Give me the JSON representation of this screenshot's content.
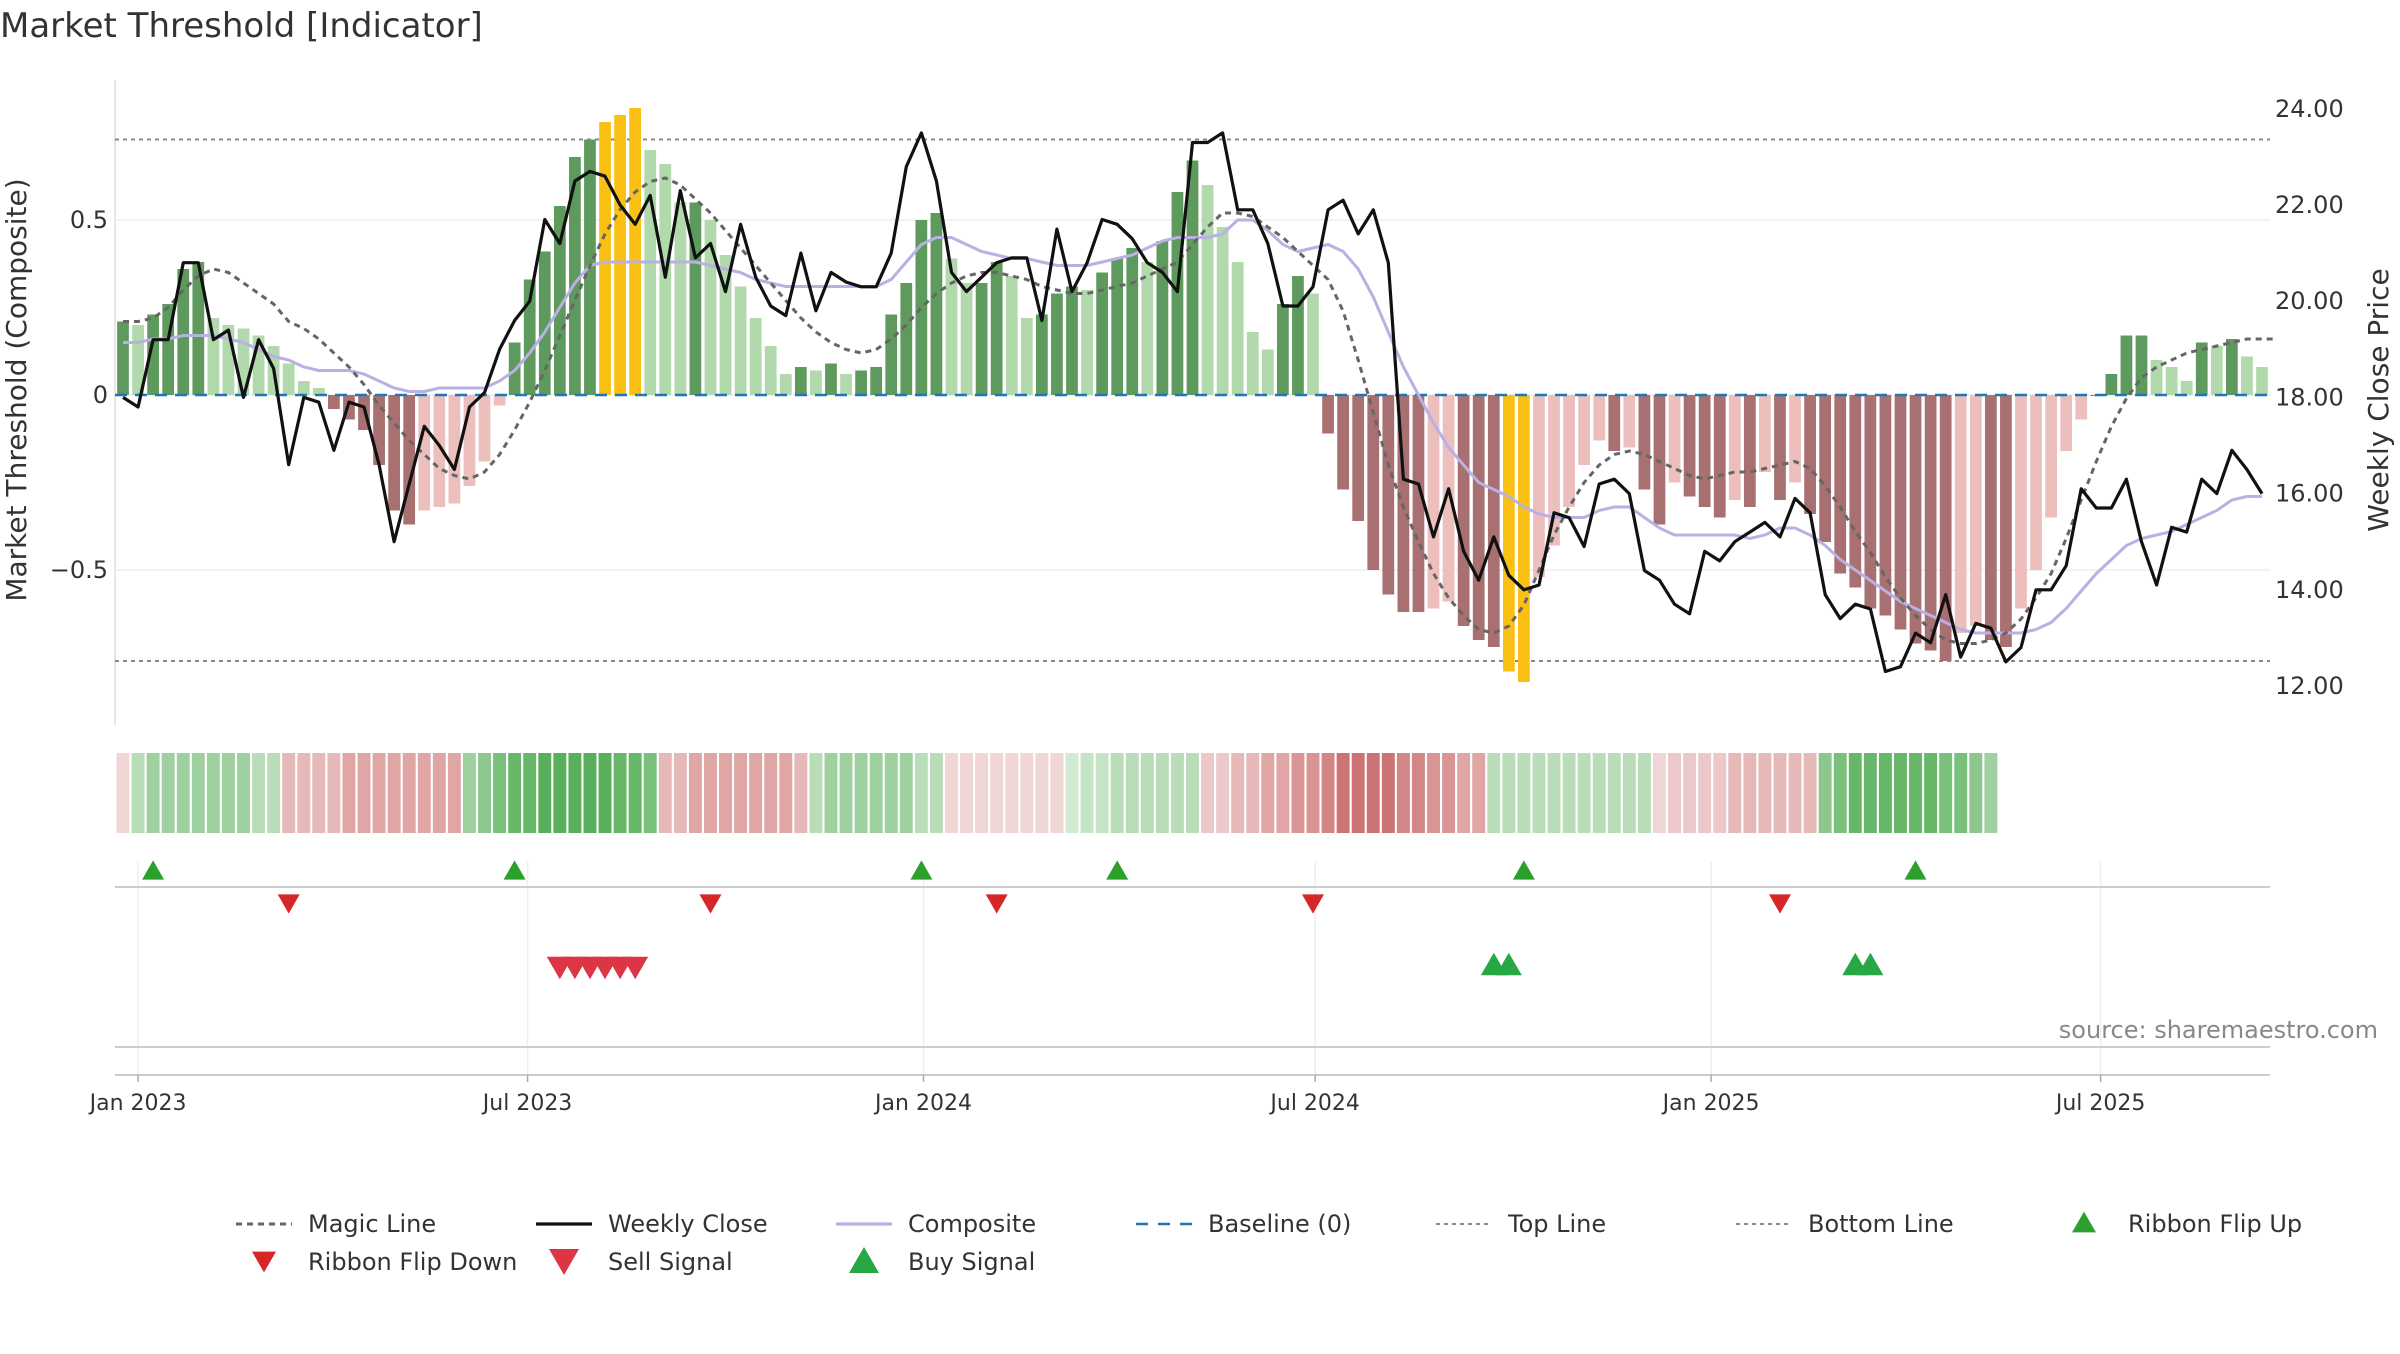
{
  "chart_data": {
    "type": "bar",
    "title": "Market Threshold [Indicator]",
    "ylabel": "Market Threshold (Composite)",
    "y2label": "Weekly Close Price",
    "ylim": [
      -0.9,
      0.9
    ],
    "y2lim": [
      11.5,
      24.6
    ],
    "yticks": [
      {
        "v": 0.5,
        "label": "0.5"
      },
      {
        "v": 0,
        "label": "0"
      },
      {
        "v": -0.5,
        "label": "−0.5"
      }
    ],
    "y2ticks": [
      "12.00",
      "14.00",
      "16.00",
      "18.00",
      "20.00",
      "22.00",
      "24.00"
    ],
    "x_start": "2022-12-25",
    "x_step_days": 7,
    "x_ticks": [
      {
        "date": "2023-01-01",
        "label": "Jan 2023"
      },
      {
        "date": "2023-07-01",
        "label": "Jul 2023"
      },
      {
        "date": "2024-01-01",
        "label": "Jan 2024"
      },
      {
        "date": "2024-07-01",
        "label": "Jul 2024"
      },
      {
        "date": "2025-01-01",
        "label": "Jan 2025"
      },
      {
        "date": "2025-07-01",
        "label": "Jul 2025"
      }
    ],
    "top_line": 0.73,
    "bottom_line": -0.76,
    "composite": [
      0.21,
      0.2,
      0.23,
      0.26,
      0.36,
      0.38,
      0.22,
      0.2,
      0.19,
      0.17,
      0.14,
      0.09,
      0.04,
      0.02,
      -0.04,
      -0.07,
      -0.1,
      -0.2,
      -0.33,
      -0.37,
      -0.33,
      -0.32,
      -0.31,
      -0.26,
      -0.19,
      -0.03,
      0.15,
      0.33,
      0.41,
      0.54,
      0.68,
      0.73,
      0.78,
      0.8,
      0.82,
      0.7,
      0.66,
      0.55,
      0.55,
      0.5,
      0.4,
      0.31,
      0.22,
      0.14,
      0.06,
      0.08,
      0.07,
      0.09,
      0.06,
      0.07,
      0.08,
      0.23,
      0.32,
      0.5,
      0.52,
      0.39,
      0.32,
      0.32,
      0.38,
      0.34,
      0.22,
      0.23,
      0.29,
      0.31,
      0.3,
      0.35,
      0.39,
      0.42,
      0.38,
      0.44,
      0.58,
      0.67,
      0.6,
      0.48,
      0.38,
      0.18,
      0.13,
      0.26,
      0.34,
      0.29,
      -0.11,
      -0.27,
      -0.36,
      -0.5,
      -0.57,
      -0.62,
      -0.62,
      -0.61,
      -0.59,
      -0.66,
      -0.7,
      -0.72,
      -0.79,
      -0.82,
      -0.52,
      -0.43,
      -0.32,
      -0.2,
      -0.13,
      -0.16,
      -0.15,
      -0.27,
      -0.37,
      -0.25,
      -0.29,
      -0.32,
      -0.35,
      -0.3,
      -0.32,
      -0.22,
      -0.3,
      -0.25,
      -0.34,
      -0.42,
      -0.51,
      -0.55,
      -0.61,
      -0.63,
      -0.67,
      -0.71,
      -0.73,
      -0.76,
      -0.68,
      -0.66,
      -0.7,
      -0.72,
      -0.61,
      -0.5,
      -0.35,
      -0.16,
      -0.07,
      0.0,
      0.06,
      0.17,
      0.17,
      0.1,
      0.08,
      0.04,
      0.15,
      0.14,
      0.16,
      0.11,
      0.08
    ],
    "weekly_close": [
      18.0,
      17.8,
      19.2,
      19.2,
      20.8,
      20.8,
      19.2,
      19.4,
      18.0,
      19.2,
      18.6,
      16.6,
      18.0,
      17.9,
      16.9,
      17.9,
      17.8,
      16.6,
      15.0,
      16.2,
      17.4,
      17.0,
      16.5,
      17.8,
      18.1,
      19.0,
      19.6,
      20.0,
      21.7,
      21.2,
      22.5,
      22.7,
      22.6,
      22.0,
      21.6,
      22.2,
      20.5,
      22.3,
      20.9,
      21.2,
      20.2,
      21.6,
      20.5,
      19.9,
      19.7,
      21.0,
      19.8,
      20.6,
      20.4,
      20.3,
      20.3,
      21.0,
      22.8,
      23.5,
      22.5,
      20.6,
      20.2,
      20.5,
      20.8,
      20.9,
      20.9,
      19.6,
      21.5,
      20.2,
      20.8,
      21.7,
      21.6,
      21.3,
      20.8,
      20.6,
      20.2,
      23.3,
      23.3,
      23.5,
      21.9,
      21.9,
      21.2,
      19.9,
      19.9,
      20.3,
      21.9,
      22.1,
      21.4,
      21.9,
      20.8,
      16.3,
      16.2,
      15.1,
      16.1,
      14.8,
      14.2,
      15.1,
      14.3,
      14.0,
      14.1,
      15.6,
      15.5,
      14.9,
      16.2,
      16.3,
      16.0,
      14.4,
      14.2,
      13.7,
      13.5,
      14.8,
      14.6,
      15.0,
      15.2,
      15.4,
      15.1,
      15.9,
      15.6,
      13.9,
      13.4,
      13.7,
      13.6,
      12.3,
      12.4,
      13.1,
      12.9,
      13.9,
      12.6,
      13.3,
      13.2,
      12.5,
      12.8,
      14.0,
      14.0,
      14.5,
      16.1,
      15.7,
      15.7,
      16.3,
      15.0,
      14.1,
      15.3,
      15.2,
      16.3,
      16.0,
      16.9,
      16.5,
      16.0
    ],
    "magic_line": [
      0.21,
      0.21,
      0.22,
      0.25,
      0.3,
      0.34,
      0.36,
      0.35,
      0.32,
      0.29,
      0.26,
      0.21,
      0.19,
      0.16,
      0.12,
      0.08,
      0.03,
      -0.03,
      -0.08,
      -0.13,
      -0.17,
      -0.21,
      -0.23,
      -0.24,
      -0.22,
      -0.17,
      -0.1,
      -0.02,
      0.07,
      0.17,
      0.27,
      0.37,
      0.46,
      0.53,
      0.58,
      0.61,
      0.62,
      0.6,
      0.56,
      0.52,
      0.47,
      0.42,
      0.37,
      0.32,
      0.27,
      0.22,
      0.18,
      0.15,
      0.13,
      0.12,
      0.13,
      0.16,
      0.2,
      0.25,
      0.29,
      0.32,
      0.34,
      0.35,
      0.35,
      0.34,
      0.33,
      0.31,
      0.3,
      0.29,
      0.29,
      0.3,
      0.31,
      0.32,
      0.34,
      0.36,
      0.38,
      0.43,
      0.48,
      0.52,
      0.52,
      0.51,
      0.48,
      0.45,
      0.41,
      0.37,
      0.33,
      0.24,
      0.1,
      -0.05,
      -0.2,
      -0.32,
      -0.42,
      -0.51,
      -0.58,
      -0.63,
      -0.67,
      -0.68,
      -0.66,
      -0.6,
      -0.5,
      -0.4,
      -0.32,
      -0.25,
      -0.2,
      -0.17,
      -0.16,
      -0.17,
      -0.19,
      -0.21,
      -0.23,
      -0.24,
      -0.23,
      -0.22,
      -0.22,
      -0.21,
      -0.2,
      -0.19,
      -0.21,
      -0.26,
      -0.32,
      -0.39,
      -0.45,
      -0.52,
      -0.58,
      -0.63,
      -0.67,
      -0.7,
      -0.71,
      -0.71,
      -0.7,
      -0.68,
      -0.64,
      -0.58,
      -0.51,
      -0.41,
      -0.3,
      -0.19,
      -0.09,
      -0.01,
      0.05,
      0.08,
      0.1,
      0.12,
      0.13,
      0.14,
      0.15,
      0.16,
      0.16,
      0.16
    ],
    "composite_line": [
      0.15,
      0.15,
      0.16,
      0.16,
      0.17,
      0.17,
      0.17,
      0.16,
      0.15,
      0.13,
      0.11,
      0.1,
      0.08,
      0.07,
      0.07,
      0.07,
      0.06,
      0.04,
      0.02,
      0.01,
      0.01,
      0.02,
      0.02,
      0.02,
      0.02,
      0.04,
      0.07,
      0.12,
      0.18,
      0.25,
      0.32,
      0.37,
      0.38,
      0.38,
      0.38,
      0.38,
      0.38,
      0.38,
      0.38,
      0.37,
      0.36,
      0.35,
      0.33,
      0.32,
      0.31,
      0.31,
      0.31,
      0.31,
      0.31,
      0.31,
      0.31,
      0.33,
      0.38,
      0.43,
      0.45,
      0.45,
      0.43,
      0.41,
      0.4,
      0.39,
      0.39,
      0.38,
      0.37,
      0.37,
      0.37,
      0.38,
      0.39,
      0.4,
      0.42,
      0.44,
      0.45,
      0.45,
      0.45,
      0.46,
      0.5,
      0.5,
      0.47,
      0.43,
      0.41,
      0.42,
      0.43,
      0.41,
      0.36,
      0.28,
      0.18,
      0.08,
      0.0,
      -0.08,
      -0.15,
      -0.2,
      -0.25,
      -0.27,
      -0.29,
      -0.32,
      -0.34,
      -0.35,
      -0.35,
      -0.35,
      -0.33,
      -0.32,
      -0.32,
      -0.35,
      -0.38,
      -0.4,
      -0.4,
      -0.4,
      -0.4,
      -0.4,
      -0.41,
      -0.4,
      -0.38,
      -0.38,
      -0.4,
      -0.43,
      -0.47,
      -0.5,
      -0.53,
      -0.56,
      -0.59,
      -0.61,
      -0.63,
      -0.65,
      -0.67,
      -0.68,
      -0.68,
      -0.68,
      -0.68,
      -0.67,
      -0.65,
      -0.61,
      -0.56,
      -0.51,
      -0.47,
      -0.43,
      -0.41,
      -0.4,
      -0.39,
      -0.37,
      -0.35,
      -0.33,
      -0.3,
      -0.29,
      -0.29
    ]
  },
  "ribbon": {
    "colors": [
      "#f1d6d6",
      "#b9ddb9",
      "#9fd1a0",
      "#9fd1a0",
      "#9fd1a0",
      "#9fd1a0",
      "#9fd1a0",
      "#9fd1a0",
      "#9fd1a0",
      "#b9ddb9",
      "#b9ddb9",
      "#e6b8b8",
      "#e6b8b8",
      "#e6b8b8",
      "#e6b8b8",
      "#e0a6a6",
      "#e0a6a6",
      "#e0a6a6",
      "#e0a6a6",
      "#e0a6a6",
      "#e0a6a6",
      "#e0a6a6",
      "#e0a6a6",
      "#9fd1a0",
      "#8cc88d",
      "#79c07a",
      "#66b768",
      "#66b768",
      "#5aaf5c",
      "#5aaf5c",
      "#5aaf5c",
      "#5aaf5c",
      "#5aaf5c",
      "#66b768",
      "#66b768",
      "#79c07a",
      "#e6b8b8",
      "#e6b8b8",
      "#e0a6a6",
      "#e0a6a6",
      "#e0a6a6",
      "#e0a6a6",
      "#e0a6a6",
      "#e0a6a6",
      "#e0a6a6",
      "#e6b8b8",
      "#b9ddb9",
      "#9fd1a0",
      "#9fd1a0",
      "#9fd1a0",
      "#9fd1a0",
      "#9fd1a0",
      "#9fd1a0",
      "#b9ddb9",
      "#b9ddb9",
      "#f1d6d6",
      "#f1d6d6",
      "#f1d6d6",
      "#f1d6d6",
      "#f1d6d6",
      "#f1d6d6",
      "#f1d6d6",
      "#f1d6d6",
      "#d2ead2",
      "#c5e3c5",
      "#c5e3c5",
      "#b9ddb9",
      "#b9ddb9",
      "#b9ddb9",
      "#b9ddb9",
      "#b9ddb9",
      "#b9ddb9",
      "#ecc8c8",
      "#ecc8c8",
      "#e6b8b8",
      "#e6b8b8",
      "#e0a6a6",
      "#e0a6a6",
      "#d99595",
      "#d99595",
      "#d38686",
      "#cc7373",
      "#cc7373",
      "#cc7373",
      "#cc7373",
      "#d38686",
      "#d38686",
      "#d99595",
      "#d99595",
      "#e0a6a6",
      "#e0a6a6",
      "#b9ddb9",
      "#b9ddb9",
      "#b9ddb9",
      "#b9ddb9",
      "#b9ddb9",
      "#b9ddb9",
      "#b9ddb9",
      "#b9ddb9",
      "#b9ddb9",
      "#b9ddb9",
      "#b9ddb9",
      "#f1d6d6",
      "#ecc8c8",
      "#ecc8c8",
      "#ecc8c8",
      "#ecc8c8",
      "#e6b8b8",
      "#e6b8b8",
      "#e6b8b8",
      "#e6b8b8",
      "#e6b8b8",
      "#e6b8b8",
      "#8cc88d",
      "#79c07a",
      "#66b768",
      "#66b768",
      "#66b768",
      "#66b768",
      "#66b768",
      "#66b768",
      "#79c07a",
      "#79c07a",
      "#8cc88d",
      "#9fd1a0"
    ]
  },
  "signals": {
    "flip_up_weeks": [
      2,
      26,
      53,
      66,
      93,
      119
    ],
    "flip_down_weeks": [
      11,
      39,
      58,
      79,
      110
    ],
    "sell_weeks": [
      29,
      30,
      31,
      32,
      33,
      34
    ],
    "buy_weeks": [
      91,
      92,
      115,
      116
    ]
  },
  "source": "source: sharemaestro.com",
  "legend": [
    {
      "label": "Magic Line",
      "kind": "dotted",
      "color": "#666666"
    },
    {
      "label": "Weekly Close",
      "kind": "solid",
      "color": "#111111"
    },
    {
      "label": "Composite",
      "kind": "solid",
      "color": "#b9b0e4"
    },
    {
      "label": "Baseline (0)",
      "kind": "dashed",
      "color": "#1f77b4"
    },
    {
      "label": "Top Line",
      "kind": "finedot",
      "color": "#888888"
    },
    {
      "label": "Bottom Line",
      "kind": "finedot",
      "color": "#888888"
    },
    {
      "label": "Ribbon Flip Up",
      "kind": "tri-up",
      "color": "#2ca02c"
    },
    {
      "label": "Ribbon Flip Down",
      "kind": "tri-down",
      "color": "#d62728"
    },
    {
      "label": "Sell Signal",
      "kind": "tri-down-big",
      "color": "#dc3545"
    },
    {
      "label": "Buy Signal",
      "kind": "tri-up-big",
      "color": "#28a745"
    }
  ],
  "colors": {
    "pos_dark": "#5e9a5e",
    "pos_light": "#b1d9ac",
    "neg_dark": "#a87070",
    "neg_light": "#ecbfbd",
    "extreme": "#fbc014",
    "close": "#111111",
    "composite": "#b9b0e4",
    "magic": "#666666",
    "baseline": "#1f77b4",
    "threshold": "#888888",
    "flip_up": "#2ca02c",
    "flip_down": "#d62728",
    "sell": "#dc3545",
    "buy": "#28a745"
  }
}
